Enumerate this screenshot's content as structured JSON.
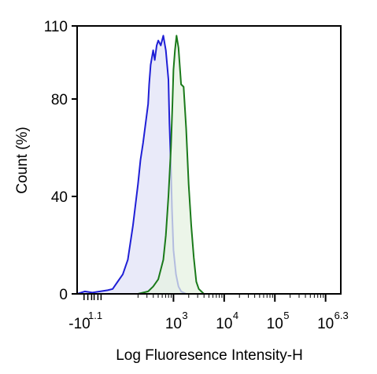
{
  "chart_data": {
    "type": "area",
    "title": "",
    "xlabel": "Log Fluoresence Intensity-H",
    "ylabel": "Count  (%)",
    "xscale": "biexponential-log",
    "x_tick_labels": [
      {
        "value": -10,
        "base": "-10",
        "exp": "1.1"
      },
      {
        "value": 1000,
        "base": "10",
        "exp": "3"
      },
      {
        "value": 10000,
        "base": "10",
        "exp": "4"
      },
      {
        "value": 100000,
        "base": "10",
        "exp": "5"
      },
      {
        "value": 1995262,
        "base": "10",
        "exp": "6.3"
      }
    ],
    "y_ticks": [
      0,
      40,
      80,
      110
    ],
    "ylim": [
      0,
      110
    ],
    "x_log_range": [
      1.1,
      6.3
    ],
    "grid": false,
    "legend": "none",
    "series": [
      {
        "color": "#1f1fd6",
        "fill": "#e2e3f7",
        "x": [
          1.1,
          1.25,
          1.4,
          1.55,
          1.7,
          1.8,
          1.9,
          2.0,
          2.1,
          2.2,
          2.3,
          2.35,
          2.4,
          2.45,
          2.5,
          2.52,
          2.55,
          2.6,
          2.63,
          2.67,
          2.7,
          2.75,
          2.8,
          2.85,
          2.9,
          2.92,
          2.95,
          2.97,
          3.0,
          3.05,
          3.1,
          3.15,
          3.25,
          3.4
        ],
        "values": [
          0,
          1,
          0.5,
          1,
          1.5,
          2,
          5,
          8,
          14,
          28,
          45,
          55,
          62,
          70,
          78,
          86,
          94,
          100,
          96,
          102,
          104,
          102,
          106,
          100,
          88,
          70,
          52,
          35,
          18,
          8,
          3,
          1,
          0,
          0
        ]
      },
      {
        "color": "#1a7a1a",
        "fill": "#e6f2e1",
        "x": [
          2.3,
          2.5,
          2.6,
          2.7,
          2.8,
          2.85,
          2.9,
          2.95,
          2.98,
          3.0,
          3.03,
          3.06,
          3.1,
          3.15,
          3.2,
          3.25,
          3.3,
          3.35,
          3.4,
          3.45,
          3.5,
          3.55,
          3.6,
          3.7,
          3.8
        ],
        "values": [
          0,
          1,
          3,
          6,
          14,
          24,
          40,
          60,
          78,
          92,
          100,
          106,
          101,
          86,
          85,
          68,
          45,
          28,
          15,
          5,
          2,
          1,
          0,
          0,
          0
        ]
      }
    ]
  }
}
